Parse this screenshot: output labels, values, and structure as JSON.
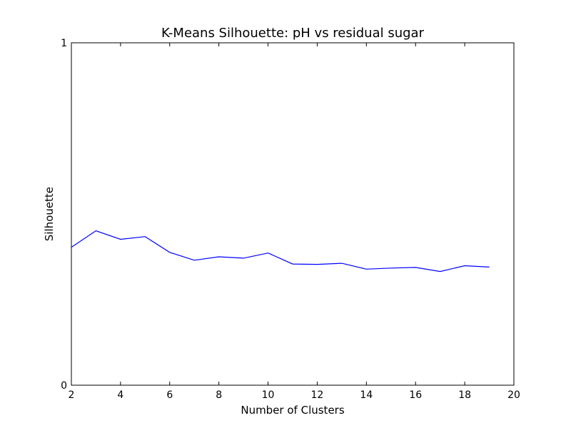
{
  "chart_data": {
    "type": "line",
    "title": "K-Means Silhouette: pH vs residual sugar",
    "xlabel": "Number of Clusters",
    "ylabel": "Silhouette",
    "xlim": [
      2,
      20
    ],
    "ylim": [
      0,
      1
    ],
    "xticks": [
      2,
      4,
      6,
      8,
      10,
      12,
      14,
      16,
      18,
      20
    ],
    "yticks": [
      0,
      1
    ],
    "grid": false,
    "series": [
      {
        "color": "#0000ff",
        "x": [
          2,
          3,
          4,
          5,
          6,
          7,
          8,
          9,
          10,
          11,
          12,
          13,
          14,
          15,
          16,
          17,
          18,
          19
        ],
        "y": [
          0.403,
          0.451,
          0.426,
          0.434,
          0.388,
          0.365,
          0.375,
          0.371,
          0.386,
          0.354,
          0.353,
          0.356,
          0.339,
          0.342,
          0.344,
          0.332,
          0.349,
          0.345
        ]
      }
    ]
  }
}
